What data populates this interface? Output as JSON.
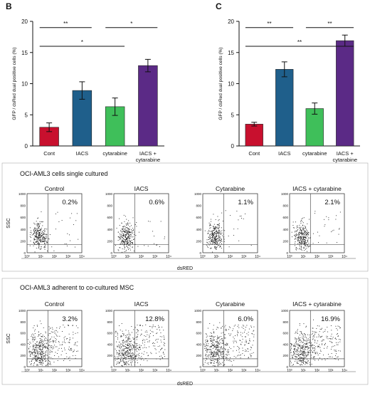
{
  "panels": {
    "B": {
      "letter": "B"
    },
    "C": {
      "letter": "C"
    }
  },
  "chart_data": [
    {
      "type": "bar",
      "panel": "B",
      "categories": [
        "Cont",
        "IACS",
        "cytarabine",
        "IACS +\ncytarabine"
      ],
      "values": [
        3.0,
        8.9,
        6.3,
        12.9
      ],
      "errors": [
        0.7,
        1.4,
        1.4,
        1.0
      ],
      "colors": [
        "#c8102e",
        "#1f5f8b",
        "#3fbf5a",
        "#5b2a86"
      ],
      "ylabel": "GFP / dsRed dual positive cells (%)",
      "ylim": [
        0,
        20
      ],
      "yticks": [
        0,
        5,
        10,
        15,
        20
      ],
      "significance": [
        {
          "from": 0,
          "to": 1,
          "label": "**",
          "y": 19.0
        },
        {
          "from": 2,
          "to": 3,
          "label": "*",
          "y": 19.0
        },
        {
          "from": 0,
          "to": 2,
          "label": "*",
          "y": 16.0
        }
      ]
    },
    {
      "type": "bar",
      "panel": "C",
      "categories": [
        "Cont",
        "IACS",
        "cytarabine",
        "IACS +\ncytarabine"
      ],
      "values": [
        3.5,
        12.3,
        6.0,
        16.9
      ],
      "errors": [
        0.3,
        1.2,
        0.9,
        0.9
      ],
      "colors": [
        "#c8102e",
        "#1f5f8b",
        "#3fbf5a",
        "#5b2a86"
      ],
      "ylabel": "GFP / dsRed dual positive cells (%)",
      "ylim": [
        0,
        20
      ],
      "yticks": [
        0,
        5,
        10,
        15,
        20
      ],
      "significance": [
        {
          "from": 0,
          "to": 1,
          "label": "**",
          "y": 19.0
        },
        {
          "from": 2,
          "to": 3,
          "label": "**",
          "y": 19.0
        },
        {
          "from": 0,
          "to": 3,
          "label": "**",
          "y": 16.0
        }
      ]
    }
  ],
  "flow_rows": [
    {
      "title": "OCI-AML3 cells single cultured",
      "panels": [
        {
          "name": "Control",
          "percent": "0.2%",
          "density": "single"
        },
        {
          "name": "IACS",
          "percent": "0.6%",
          "density": "single"
        },
        {
          "name": "Cytarabine",
          "percent": "1.1%",
          "density": "single"
        },
        {
          "name": "IACS + cytarabine",
          "percent": "2.1%",
          "density": "single"
        }
      ],
      "ylabel": "SSC",
      "xlabel": "dsRED",
      "yticks": [
        "0",
        "200",
        "400",
        "600",
        "800",
        "1000"
      ],
      "xticks": [
        "10⁰",
        "10¹",
        "10²",
        "10³",
        "10⁴"
      ]
    },
    {
      "title": "OCI-AML3 adherent to co-cultured MSC",
      "panels": [
        {
          "name": "Control",
          "percent": "3.2%",
          "density": "co"
        },
        {
          "name": "IACS",
          "percent": "12.8%",
          "density": "co"
        },
        {
          "name": "Cytarabine",
          "percent": "6.0%",
          "density": "co"
        },
        {
          "name": "IACS + cytarabine",
          "percent": "16.9%",
          "density": "co"
        }
      ],
      "ylabel": "SSC",
      "xlabel": "dsRED",
      "yticks": [
        "0",
        "200",
        "400",
        "600",
        "800",
        "1000"
      ],
      "xticks": [
        "10⁰",
        "10¹",
        "10²",
        "10³",
        "10⁴"
      ]
    }
  ]
}
